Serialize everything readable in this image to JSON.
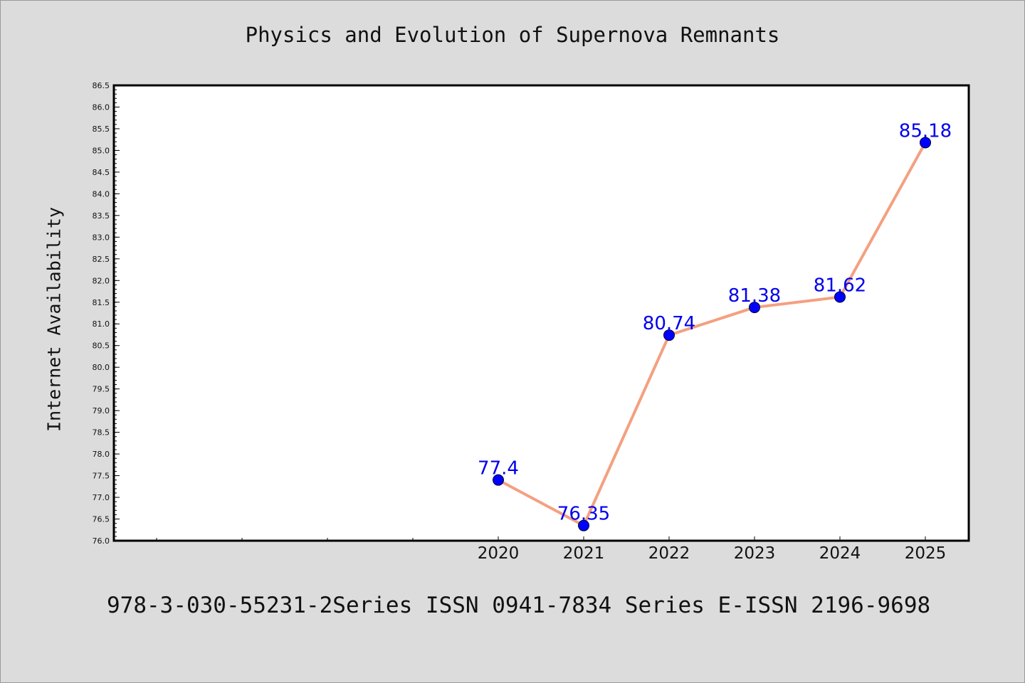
{
  "chart_data": {
    "type": "line",
    "title": "Physics and Evolution of Supernova Remnants",
    "xlabel": "",
    "ylabel": "Internet Availability",
    "categories": [
      "2020",
      "2021",
      "2022",
      "2023",
      "2024",
      "2025"
    ],
    "series": [
      {
        "values": [
          77.4,
          76.35,
          80.74,
          81.38,
          81.62,
          85.18
        ],
        "color": "#f4a080",
        "marker_color": "#0000ff"
      }
    ],
    "data_labels": [
      "77.4",
      "76.35",
      "80.74",
      "81.38",
      "81.62",
      "85.18"
    ],
    "ylim": [
      76.0,
      86.5
    ],
    "yticks": [
      "76.0",
      "76.5",
      "77.0",
      "77.5",
      "78.0",
      "78.5",
      "79.0",
      "79.5",
      "80.0",
      "80.5",
      "81.0",
      "81.5",
      "82.0",
      "82.5",
      "83.0",
      "83.5",
      "84.0",
      "84.5",
      "85.0",
      "85.5",
      "86.0",
      "86.5"
    ],
    "grid": false,
    "legend": "none"
  },
  "footer": {
    "text": "978-3-030-55231-2Series ISSN 0941-7834 Series E-ISSN 2196-9698"
  },
  "colors": {
    "background": "#dcdcdc",
    "plot_area": "#ffffff",
    "line": "#f4a080",
    "marker": "#0000ff",
    "data_label": "#0000ee"
  }
}
